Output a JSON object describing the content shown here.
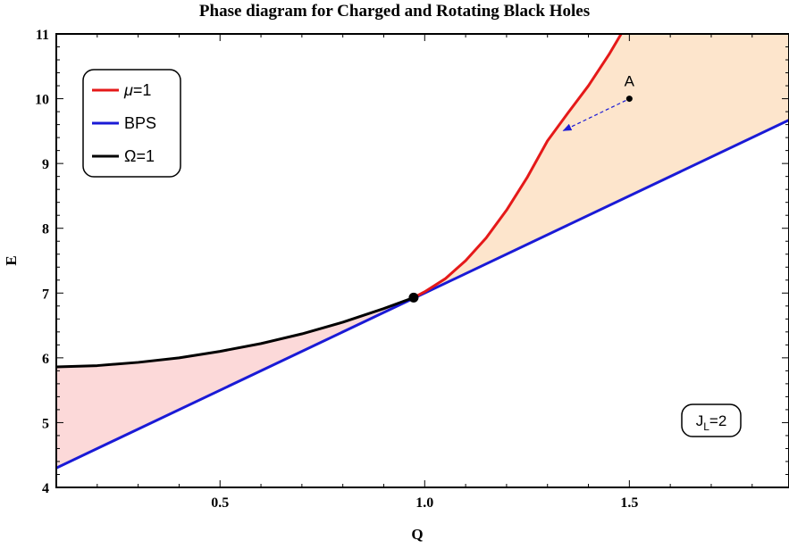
{
  "chart_data": {
    "type": "line",
    "title": "Phase diagram for Charged and Rotating Black Holes",
    "xlabel": "Q",
    "ylabel": "E",
    "xlim": [
      0.1,
      1.89
    ],
    "ylim": [
      4,
      11
    ],
    "x_ticks": [
      0.5,
      1.0,
      1.5
    ],
    "x_tick_labels": [
      "0.5",
      "1.0",
      "1.5"
    ],
    "y_ticks": [
      4,
      5,
      6,
      7,
      8,
      9,
      10,
      11
    ],
    "y_tick_labels": [
      "4",
      "5",
      "6",
      "7",
      "8",
      "9",
      "10",
      "11"
    ],
    "grid": false,
    "legend_position": "top-left",
    "series": [
      {
        "name": "μ=1",
        "legend_label_main": "μ",
        "legend_label_rest": "=1",
        "color": "#e51919",
        "x": [
          0.973,
          1.0,
          1.05,
          1.1,
          1.15,
          1.2,
          1.25,
          1.3,
          1.35,
          1.4,
          1.45,
          1.48
        ],
        "y": [
          6.93,
          7.02,
          7.22,
          7.5,
          7.85,
          8.28,
          8.78,
          9.35,
          9.78,
          10.2,
          10.68,
          11.0
        ]
      },
      {
        "name": "BPS",
        "legend_label_main": "BPS",
        "legend_label_rest": "",
        "color": "#1a1ad6",
        "x": [
          0.1,
          1.89
        ],
        "y": [
          4.3,
          9.67
        ]
      },
      {
        "name": "Ω=1",
        "legend_label_main": "Ω=1",
        "legend_label_rest": "",
        "color": "#000000",
        "x": [
          0.1,
          0.2,
          0.3,
          0.4,
          0.5,
          0.6,
          0.7,
          0.8,
          0.9,
          0.973
        ],
        "y": [
          5.86,
          5.88,
          5.93,
          6.0,
          6.1,
          6.22,
          6.37,
          6.55,
          6.76,
          6.93
        ]
      }
    ],
    "shaded_regions": [
      {
        "name": "region-left",
        "color": "#fcd9d9"
      },
      {
        "name": "region-right",
        "color": "#fde5cc"
      }
    ],
    "marked_point": {
      "x": 0.973,
      "y": 6.93
    },
    "annotation_point": {
      "label": "A",
      "x": 1.5,
      "y": 10.0,
      "arrow_to_x": 1.33,
      "arrow_to_y": 9.48
    },
    "inset_label": {
      "main": "J",
      "sub": "L",
      "rest": "=2"
    }
  }
}
